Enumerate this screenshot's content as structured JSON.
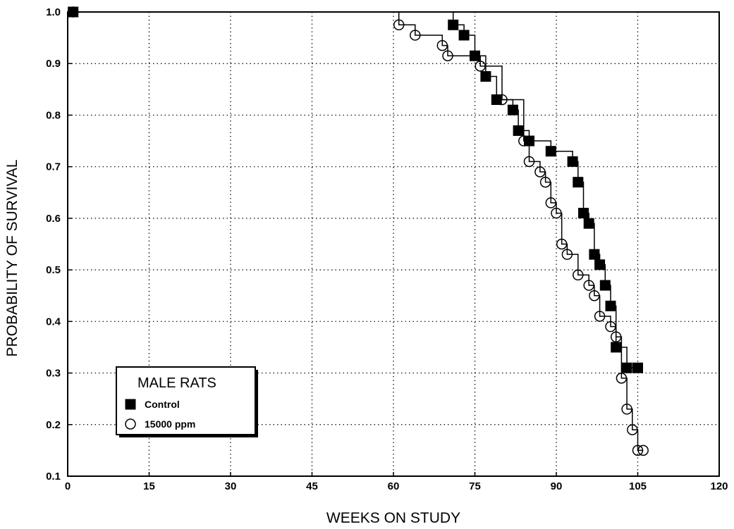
{
  "chart_data": {
    "type": "line",
    "title": "",
    "xlabel": "WEEKS ON STUDY",
    "ylabel": "PROBABILITY OF SURVIVAL",
    "xlim": [
      0,
      120
    ],
    "ylim": [
      0.1,
      1.0
    ],
    "x_ticks": [
      "0",
      "15",
      "30",
      "45",
      "60",
      "75",
      "90",
      "105",
      "120"
    ],
    "y_ticks": [
      "0.1",
      "0.2",
      "0.3",
      "0.4",
      "0.5",
      "0.6",
      "0.7",
      "0.8",
      "0.9",
      "1.0"
    ],
    "grid": true,
    "legend_position": "bottom-left",
    "legend_title": "MALE RATS",
    "series": [
      {
        "name": "Control",
        "marker": "filled-square",
        "color": "#000000",
        "points": [
          [
            1,
            1.0
          ],
          [
            71,
            0.975
          ],
          [
            73,
            0.955
          ],
          [
            75,
            0.915
          ],
          [
            77,
            0.875
          ],
          [
            79,
            0.83
          ],
          [
            82,
            0.81
          ],
          [
            83,
            0.77
          ],
          [
            85,
            0.75
          ],
          [
            89,
            0.73
          ],
          [
            93,
            0.71
          ],
          [
            94,
            0.67
          ],
          [
            95,
            0.61
          ],
          [
            96,
            0.59
          ],
          [
            97,
            0.53
          ],
          [
            98,
            0.51
          ],
          [
            99,
            0.47
          ],
          [
            100,
            0.43
          ],
          [
            101,
            0.35
          ],
          [
            103,
            0.31
          ],
          [
            105,
            0.31
          ]
        ]
      },
      {
        "name": "15000 ppm",
        "marker": "open-circle",
        "color": "#000000",
        "points": [
          [
            1,
            1.0
          ],
          [
            61,
            0.975
          ],
          [
            64,
            0.955
          ],
          [
            69,
            0.935
          ],
          [
            70,
            0.915
          ],
          [
            76,
            0.895
          ],
          [
            80,
            0.83
          ],
          [
            84,
            0.75
          ],
          [
            85,
            0.71
          ],
          [
            87,
            0.69
          ],
          [
            88,
            0.67
          ],
          [
            89,
            0.63
          ],
          [
            90,
            0.61
          ],
          [
            91,
            0.55
          ],
          [
            92,
            0.53
          ],
          [
            94,
            0.49
          ],
          [
            96,
            0.47
          ],
          [
            97,
            0.45
          ],
          [
            98,
            0.41
          ],
          [
            100,
            0.39
          ],
          [
            101,
            0.37
          ],
          [
            102,
            0.29
          ],
          [
            103,
            0.23
          ],
          [
            104,
            0.19
          ],
          [
            105,
            0.15
          ],
          [
            106,
            0.15
          ]
        ]
      }
    ]
  }
}
